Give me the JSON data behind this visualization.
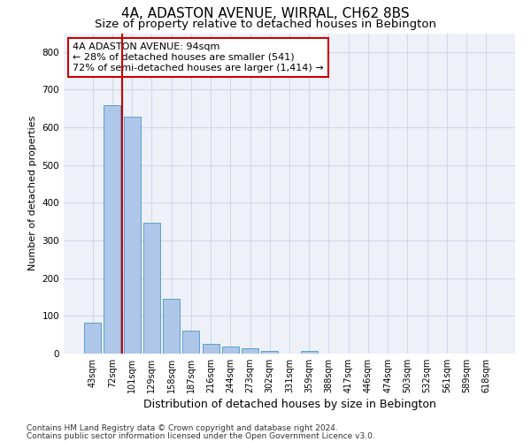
{
  "title_line1": "4A, ADASTON AVENUE, WIRRAL, CH62 8BS",
  "title_line2": "Size of property relative to detached houses in Bebington",
  "xlabel": "Distribution of detached houses by size in Bebington",
  "ylabel": "Number of detached properties",
  "categories": [
    "43sqm",
    "72sqm",
    "101sqm",
    "129sqm",
    "158sqm",
    "187sqm",
    "216sqm",
    "244sqm",
    "273sqm",
    "302sqm",
    "331sqm",
    "359sqm",
    "388sqm",
    "417sqm",
    "446sqm",
    "474sqm",
    "503sqm",
    "532sqm",
    "561sqm",
    "589sqm",
    "618sqm"
  ],
  "values": [
    83,
    660,
    628,
    347,
    145,
    60,
    25,
    19,
    15,
    8,
    0,
    8,
    0,
    0,
    0,
    0,
    0,
    0,
    0,
    0,
    0
  ],
  "bar_color": "#aec6e8",
  "bar_edge_color": "#5a9fd4",
  "vline_color": "#cc0000",
  "annotation_text": "4A ADASTON AVENUE: 94sqm\n← 28% of detached houses are smaller (541)\n72% of semi-detached houses are larger (1,414) →",
  "annotation_box_color": "#ffffff",
  "annotation_box_edge": "#cc0000",
  "ylim": [
    0,
    850
  ],
  "yticks": [
    0,
    100,
    200,
    300,
    400,
    500,
    600,
    700,
    800
  ],
  "grid_color": "#d0d8e8",
  "background_color": "#eef2f8",
  "footer_line1": "Contains HM Land Registry data © Crown copyright and database right 2024.",
  "footer_line2": "Contains public sector information licensed under the Open Government Licence v3.0.",
  "title_fontsize": 11,
  "subtitle_fontsize": 9.5,
  "tick_fontsize": 7,
  "ylabel_fontsize": 8,
  "xlabel_fontsize": 9
}
